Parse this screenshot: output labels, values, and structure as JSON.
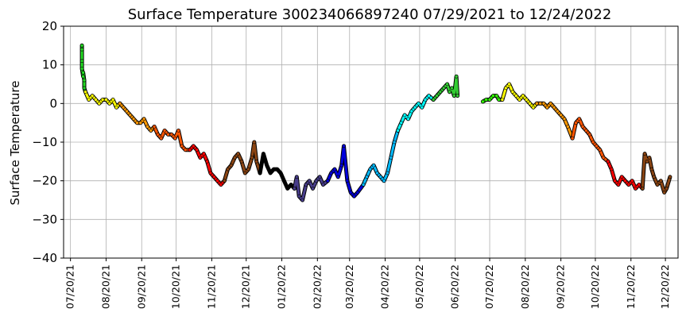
{
  "chart_data": {
    "type": "scatter",
    "title": "Surface Temperature 300234066897240  07/29/2021 to 12/24/2022",
    "ylabel": "Surface Temperature",
    "xlabel": "",
    "xlim": [
      "2021-07-14",
      "2022-12-31"
    ],
    "ylim": [
      -40,
      20
    ],
    "yticks": [
      20,
      10,
      0,
      -10,
      -20,
      -30,
      -40
    ],
    "ytick_labels": [
      "20",
      "10",
      "0",
      "−10",
      "−20",
      "−30",
      "−40"
    ],
    "xticks": [
      "2021-07-20",
      "2021-08-20",
      "2021-09-20",
      "2021-10-20",
      "2021-11-20",
      "2021-12-20",
      "2022-01-20",
      "2022-02-20",
      "2022-03-20",
      "2022-04-20",
      "2022-05-20",
      "2022-06-20",
      "2022-07-20",
      "2022-08-20",
      "2022-09-20",
      "2022-10-20",
      "2022-11-20",
      "2022-12-20"
    ],
    "xtick_labels": [
      "07/20/21",
      "08/20/21",
      "09/20/21",
      "10/20/21",
      "11/20/21",
      "12/20/21",
      "01/20/22",
      "02/20/22",
      "03/20/22",
      "04/20/22",
      "05/20/22",
      "06/20/22",
      "07/20/22",
      "08/20/22",
      "09/20/22",
      "10/20/22",
      "11/20/22",
      "12/20/22"
    ],
    "grid": true,
    "series": [
      {
        "color": "#22dd22",
        "points": [
          [
            "2021-07-30",
            15
          ],
          [
            "2021-07-30",
            14
          ],
          [
            "2021-07-30",
            11
          ],
          [
            "2021-07-30",
            9
          ],
          [
            "2021-07-31",
            7
          ],
          [
            "2021-07-31",
            8
          ],
          [
            "2021-08-01",
            6
          ],
          [
            "2021-08-01",
            4
          ],
          [
            "2021-08-02",
            3
          ]
        ]
      },
      {
        "color": "#ffff00",
        "points": [
          [
            "2021-08-02",
            3
          ],
          [
            "2021-08-05",
            1
          ],
          [
            "2021-08-08",
            2
          ],
          [
            "2021-08-11",
            1
          ],
          [
            "2021-08-14",
            0
          ],
          [
            "2021-08-17",
            1
          ],
          [
            "2021-08-20",
            1
          ],
          [
            "2021-08-23",
            0
          ],
          [
            "2021-08-26",
            1
          ],
          [
            "2021-08-29",
            -1
          ],
          [
            "2021-09-01",
            0
          ]
        ]
      },
      {
        "color": "#ff9900",
        "points": [
          [
            "2021-09-01",
            0
          ],
          [
            "2021-09-04",
            -1
          ],
          [
            "2021-09-07",
            -2
          ],
          [
            "2021-09-10",
            -3
          ],
          [
            "2021-09-13",
            -4
          ],
          [
            "2021-09-16",
            -5
          ],
          [
            "2021-09-19",
            -5
          ],
          [
            "2021-09-22",
            -4
          ],
          [
            "2021-09-25",
            -6
          ],
          [
            "2021-09-28",
            -7
          ],
          [
            "2021-10-01",
            -6
          ]
        ]
      },
      {
        "color": "#ff5500",
        "points": [
          [
            "2021-10-01",
            -6
          ],
          [
            "2021-10-04",
            -8
          ],
          [
            "2021-10-07",
            -9
          ],
          [
            "2021-10-10",
            -7
          ],
          [
            "2021-10-13",
            -8
          ],
          [
            "2021-10-16",
            -8
          ],
          [
            "2021-10-19",
            -9
          ],
          [
            "2021-10-22",
            -7
          ],
          [
            "2021-10-25",
            -11
          ],
          [
            "2021-10-28",
            -12
          ],
          [
            "2021-11-01",
            -12
          ]
        ]
      },
      {
        "color": "#ff0000",
        "points": [
          [
            "2021-11-01",
            -12
          ],
          [
            "2021-11-04",
            -11
          ],
          [
            "2021-11-07",
            -12
          ],
          [
            "2021-11-10",
            -14
          ],
          [
            "2021-11-13",
            -13
          ],
          [
            "2021-11-16",
            -15
          ],
          [
            "2021-11-19",
            -18
          ],
          [
            "2021-11-22",
            -19
          ],
          [
            "2021-11-25",
            -20
          ],
          [
            "2021-11-28",
            -21
          ],
          [
            "2021-12-01",
            -20
          ]
        ]
      },
      {
        "color": "#8b4513",
        "points": [
          [
            "2021-12-01",
            -20
          ],
          [
            "2021-12-04",
            -17
          ],
          [
            "2021-12-07",
            -16
          ],
          [
            "2021-12-10",
            -14
          ],
          [
            "2021-12-13",
            -13
          ],
          [
            "2021-12-16",
            -15
          ],
          [
            "2021-12-19",
            -18
          ],
          [
            "2021-12-22",
            -17
          ],
          [
            "2021-12-25",
            -14
          ],
          [
            "2021-12-27",
            -10
          ],
          [
            "2021-12-29",
            -15
          ],
          [
            "2022-01-01",
            -18
          ]
        ]
      },
      {
        "color": "#000000",
        "points": [
          [
            "2022-01-01",
            -18
          ],
          [
            "2022-01-04",
            -13
          ],
          [
            "2022-01-07",
            -16
          ],
          [
            "2022-01-10",
            -18
          ],
          [
            "2022-01-13",
            -17
          ],
          [
            "2022-01-16",
            -17
          ],
          [
            "2022-01-19",
            -18
          ],
          [
            "2022-01-22",
            -20
          ],
          [
            "2022-01-25",
            -22
          ],
          [
            "2022-01-28",
            -21
          ],
          [
            "2022-01-31",
            -22
          ]
        ]
      },
      {
        "color": "#483d8b",
        "points": [
          [
            "2022-01-31",
            -22
          ],
          [
            "2022-02-02",
            -19
          ],
          [
            "2022-02-04",
            -24
          ],
          [
            "2022-02-07",
            -25
          ],
          [
            "2022-02-10",
            -21
          ],
          [
            "2022-02-13",
            -20
          ],
          [
            "2022-02-16",
            -22
          ],
          [
            "2022-02-19",
            -20
          ],
          [
            "2022-02-22",
            -19
          ],
          [
            "2022-02-25",
            -21
          ],
          [
            "2022-03-01",
            -20
          ]
        ]
      },
      {
        "color": "#0000dd",
        "points": [
          [
            "2022-03-01",
            -20
          ],
          [
            "2022-03-04",
            -18
          ],
          [
            "2022-03-07",
            -17
          ],
          [
            "2022-03-10",
            -19
          ],
          [
            "2022-03-13",
            -16
          ],
          [
            "2022-03-15",
            -11
          ],
          [
            "2022-03-18",
            -20
          ],
          [
            "2022-03-21",
            -23
          ],
          [
            "2022-03-24",
            -24
          ],
          [
            "2022-03-27",
            -23
          ],
          [
            "2022-04-01",
            -21
          ]
        ]
      },
      {
        "color": "#00bbff",
        "points": [
          [
            "2022-04-01",
            -21
          ],
          [
            "2022-04-04",
            -19
          ],
          [
            "2022-04-07",
            -17
          ],
          [
            "2022-04-10",
            -16
          ],
          [
            "2022-04-13",
            -18
          ],
          [
            "2022-04-16",
            -19
          ],
          [
            "2022-04-19",
            -20
          ],
          [
            "2022-04-22",
            -18
          ],
          [
            "2022-04-25",
            -14
          ],
          [
            "2022-04-28",
            -10
          ],
          [
            "2022-05-01",
            -7
          ]
        ]
      },
      {
        "color": "#00ffff",
        "points": [
          [
            "2022-05-01",
            -7
          ],
          [
            "2022-05-04",
            -5
          ],
          [
            "2022-05-07",
            -3
          ],
          [
            "2022-05-10",
            -4
          ],
          [
            "2022-05-13",
            -2
          ],
          [
            "2022-05-16",
            -1
          ],
          [
            "2022-05-19",
            0
          ],
          [
            "2022-05-22",
            -1
          ],
          [
            "2022-05-25",
            1
          ],
          [
            "2022-05-28",
            2
          ],
          [
            "2022-06-01",
            1
          ]
        ]
      },
      {
        "color": "#33cc33",
        "points": [
          [
            "2022-06-01",
            1
          ],
          [
            "2022-06-04",
            2
          ],
          [
            "2022-06-07",
            3
          ],
          [
            "2022-06-10",
            4
          ],
          [
            "2022-06-13",
            5
          ],
          [
            "2022-06-15",
            3
          ],
          [
            "2022-06-17",
            4
          ],
          [
            "2022-06-19",
            2
          ],
          [
            "2022-06-21",
            7
          ],
          [
            "2022-06-22",
            2
          ]
        ]
      },
      {
        "color": "#33ff00",
        "points": [
          [
            "2022-07-14",
            0.5
          ],
          [
            "2022-07-17",
            1
          ],
          [
            "2022-07-20",
            1
          ],
          [
            "2022-07-23",
            2
          ],
          [
            "2022-07-26",
            2
          ],
          [
            "2022-07-28",
            1
          ],
          [
            "2022-07-31",
            1
          ]
        ]
      },
      {
        "color": "#ffff00",
        "points": [
          [
            "2022-07-31",
            1
          ],
          [
            "2022-08-03",
            4
          ],
          [
            "2022-08-06",
            5
          ],
          [
            "2022-08-09",
            3
          ],
          [
            "2022-08-12",
            2
          ],
          [
            "2022-08-15",
            1
          ],
          [
            "2022-08-18",
            2
          ],
          [
            "2022-08-21",
            1
          ],
          [
            "2022-08-24",
            0
          ],
          [
            "2022-08-27",
            -1
          ],
          [
            "2022-08-30",
            0
          ]
        ]
      },
      {
        "color": "#ff9900",
        "points": [
          [
            "2022-08-30",
            0
          ],
          [
            "2022-09-02",
            0
          ],
          [
            "2022-09-05",
            0
          ],
          [
            "2022-09-08",
            -1
          ],
          [
            "2022-09-11",
            0
          ],
          [
            "2022-09-14",
            -1
          ],
          [
            "2022-09-17",
            -2
          ],
          [
            "2022-09-20",
            -3
          ],
          [
            "2022-09-23",
            -4
          ],
          [
            "2022-09-26",
            -6
          ],
          [
            "2022-09-30",
            -9
          ]
        ]
      },
      {
        "color": "#ff5500",
        "points": [
          [
            "2022-09-30",
            -9
          ],
          [
            "2022-10-03",
            -5
          ],
          [
            "2022-10-06",
            -4
          ],
          [
            "2022-10-09",
            -6
          ],
          [
            "2022-10-12",
            -7
          ],
          [
            "2022-10-15",
            -8
          ],
          [
            "2022-10-18",
            -10
          ],
          [
            "2022-10-21",
            -11
          ],
          [
            "2022-10-24",
            -12
          ],
          [
            "2022-10-27",
            -14
          ],
          [
            "2022-10-31",
            -15
          ]
        ]
      },
      {
        "color": "#ff0000",
        "points": [
          [
            "2022-10-31",
            -15
          ],
          [
            "2022-11-03",
            -17
          ],
          [
            "2022-11-06",
            -20
          ],
          [
            "2022-11-09",
            -21
          ],
          [
            "2022-11-12",
            -19
          ],
          [
            "2022-11-15",
            -20
          ],
          [
            "2022-11-18",
            -21
          ],
          [
            "2022-11-21",
            -20
          ],
          [
            "2022-11-24",
            -22
          ],
          [
            "2022-11-27",
            -21
          ],
          [
            "2022-11-30",
            -22
          ]
        ]
      },
      {
        "color": "#8b4513",
        "points": [
          [
            "2022-11-30",
            -22
          ],
          [
            "2022-12-02",
            -13
          ],
          [
            "2022-12-04",
            -15
          ],
          [
            "2022-12-06",
            -14
          ],
          [
            "2022-12-08",
            -17
          ],
          [
            "2022-12-10",
            -19
          ],
          [
            "2022-12-13",
            -21
          ],
          [
            "2022-12-16",
            -20
          ],
          [
            "2022-12-19",
            -23
          ],
          [
            "2022-12-21",
            -22
          ],
          [
            "2022-12-24",
            -19
          ]
        ]
      }
    ]
  }
}
